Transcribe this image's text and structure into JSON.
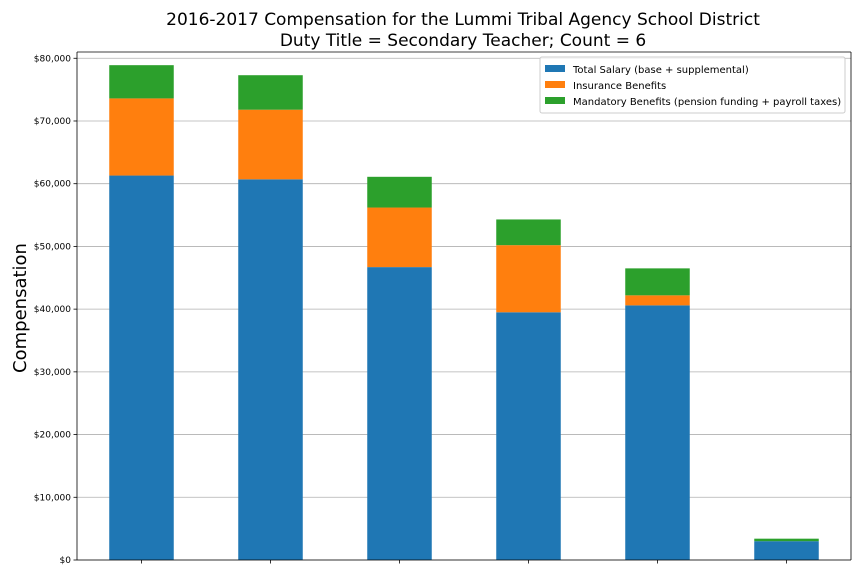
{
  "chart_data": {
    "type": "bar",
    "stacked": true,
    "title": "2016-2017 Compensation for the Lummi Tribal Agency School District",
    "subtitle": "Duty Title = Secondary Teacher; Count = 6",
    "xlabel": "",
    "ylabel": "Compensation",
    "ylim": [
      0,
      81000
    ],
    "yticks": [
      0,
      10000,
      20000,
      30000,
      40000,
      50000,
      60000,
      70000,
      80000
    ],
    "ytick_labels": [
      "$0",
      "$10,000",
      "$20,000",
      "$30,000",
      "$40,000",
      "$50,000",
      "$60,000",
      "$70,000",
      "$80,000"
    ],
    "categories": [
      "",
      "",
      "",
      "",
      "",
      ""
    ],
    "grid": "horizontal",
    "legend_position": "top-right",
    "series": [
      {
        "name": "Total Salary (base + supplemental)",
        "color": "#1f77b4",
        "values": [
          61300,
          60700,
          46700,
          39500,
          40600,
          3000
        ]
      },
      {
        "name": "Insurance Benefits",
        "color": "#ff7f0e",
        "values": [
          12300,
          11100,
          9500,
          10700,
          1600,
          0
        ]
      },
      {
        "name": "Mandatory Benefits (pension funding + payroll taxes)",
        "color": "#2ca02c",
        "values": [
          5300,
          5500,
          4900,
          4100,
          4300,
          400
        ]
      }
    ]
  }
}
